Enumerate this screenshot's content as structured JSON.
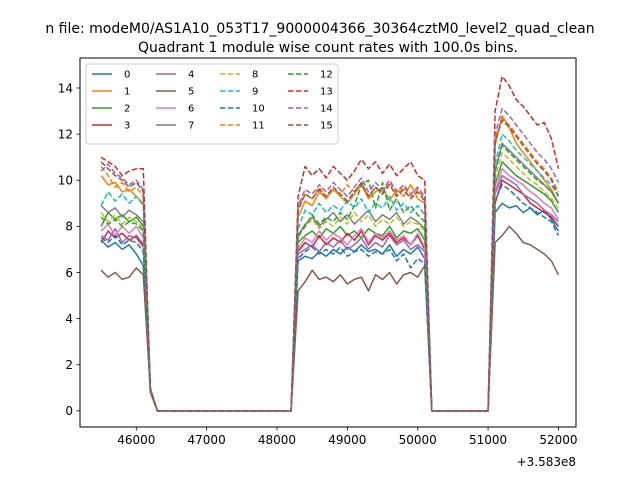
{
  "chart_data": {
    "type": "line",
    "suptitle": "n file: modeM0/AS1A10_053T17_9000004366_30364cztM0_level2_quad_clean",
    "title": "Quadrant 1 module wise count rates with 100.0s bins.",
    "xlabel": "",
    "ylabel": "",
    "x_offset_label": "+3.583e8",
    "xlim": [
      45200,
      52250
    ],
    "ylim": [
      -0.7,
      15.3
    ],
    "x_ticks": [
      46000,
      47000,
      48000,
      49000,
      50000,
      51000,
      52000
    ],
    "x_tick_labels": [
      "46000",
      "47000",
      "48000",
      "49000",
      "50000",
      "51000",
      "52000"
    ],
    "y_ticks": [
      0,
      2,
      4,
      6,
      8,
      10,
      12,
      14
    ],
    "y_tick_labels": [
      "0",
      "2",
      "4",
      "6",
      "8",
      "10",
      "12",
      "14"
    ],
    "grid": false,
    "legend_placement": "top-left",
    "legend_columns": 4,
    "segments": {
      "seg1": [
        45500,
        45600,
        45700,
        45800,
        45900,
        46000,
        46100
      ],
      "seg2": [
        48300,
        48400,
        48500,
        48600,
        48700,
        48800,
        48900,
        49000,
        49100,
        49200,
        49300,
        49400,
        49500,
        49600,
        49700,
        49800,
        49900,
        50000,
        50100
      ],
      "seg3": [
        51100,
        51200,
        51300,
        51400,
        51500,
        51600,
        51700,
        51800,
        51900,
        52000
      ],
      "gap": [
        46200,
        46300,
        48200,
        50200,
        51000
      ]
    },
    "series": [
      {
        "name": "0",
        "color": "#1f77b4",
        "dash": "solid",
        "s1": [
          7.4,
          7.1,
          7.3,
          7.0,
          7.2,
          6.8,
          6.3
        ],
        "s2": [
          6.5,
          6.7,
          6.6,
          6.9,
          6.7,
          7.0,
          6.8,
          7.1,
          6.9,
          7.2,
          6.9,
          7.0,
          6.8,
          7.2,
          6.7,
          7.0,
          6.8,
          7.1,
          6.6
        ],
        "s3": [
          8.6,
          9.0,
          8.8,
          8.9,
          8.6,
          8.8,
          8.5,
          8.7,
          8.3,
          7.8
        ]
      },
      {
        "name": "1",
        "color": "#ff7f0e",
        "dash": "solid",
        "s1": [
          10.2,
          9.8,
          9.9,
          9.5,
          9.6,
          9.3,
          9.0
        ],
        "s2": [
          8.4,
          9.1,
          8.9,
          9.5,
          9.2,
          9.6,
          9.3,
          9.0,
          9.4,
          9.8,
          9.2,
          9.5,
          9.7,
          9.1,
          9.6,
          9.3,
          9.8,
          9.2,
          9.0
        ],
        "s3": [
          11.5,
          12.8,
          12.3,
          11.6,
          11.2,
          10.8,
          10.4,
          10.0,
          9.6,
          9.0
        ]
      },
      {
        "name": "2",
        "color": "#2ca02c",
        "dash": "solid",
        "s1": [
          8.0,
          8.6,
          8.3,
          8.5,
          8.2,
          8.4,
          8.0
        ],
        "s2": [
          7.3,
          7.6,
          7.8,
          7.5,
          7.9,
          7.7,
          8.0,
          7.6,
          7.8,
          7.5,
          7.9,
          7.7,
          7.6,
          8.0,
          7.5,
          7.8,
          7.7,
          7.9,
          7.4
        ],
        "s3": [
          9.8,
          10.8,
          10.5,
          10.2,
          10.0,
          9.8,
          9.6,
          9.4,
          9.1,
          8.6
        ]
      },
      {
        "name": "3",
        "color": "#d62728",
        "dash": "solid",
        "s1": [
          7.3,
          7.8,
          7.5,
          7.7,
          7.4,
          7.6,
          7.2
        ],
        "s2": [
          6.9,
          7.3,
          7.1,
          7.6,
          7.2,
          7.5,
          7.3,
          7.7,
          7.4,
          7.8,
          7.2,
          7.6,
          7.4,
          7.7,
          7.3,
          7.5,
          7.2,
          7.6,
          7.0
        ],
        "s3": [
          9.0,
          10.0,
          9.8,
          9.6,
          9.4,
          9.0,
          8.8,
          8.6,
          8.4,
          8.0
        ]
      },
      {
        "name": "4",
        "color": "#9467bd",
        "dash": "solid",
        "s1": [
          7.6,
          7.4,
          7.9,
          7.3,
          7.6,
          7.5,
          7.1
        ],
        "s2": [
          6.8,
          7.0,
          7.2,
          6.9,
          7.3,
          7.1,
          7.4,
          7.0,
          7.2,
          7.5,
          7.0,
          7.3,
          7.1,
          7.6,
          7.2,
          7.4,
          7.0,
          7.2,
          6.9
        ],
        "s3": [
          9.4,
          10.2,
          10.0,
          9.8,
          9.4,
          9.2,
          9.0,
          8.7,
          8.5,
          8.2
        ]
      },
      {
        "name": "5",
        "color": "#8c564b",
        "dash": "solid",
        "s1": [
          6.1,
          5.8,
          6.0,
          5.7,
          5.8,
          6.2,
          5.9
        ],
        "s2": [
          5.2,
          5.6,
          6.1,
          5.7,
          5.8,
          5.6,
          5.9,
          5.5,
          5.7,
          5.8,
          5.2,
          5.9,
          5.7,
          6.0,
          5.5,
          5.9,
          6.0,
          5.8,
          6.3
        ],
        "s3": [
          7.3,
          7.6,
          8.0,
          7.7,
          7.3,
          7.2,
          7.0,
          6.8,
          6.5,
          5.9
        ]
      },
      {
        "name": "6",
        "color": "#e377c2",
        "dash": "solid",
        "s1": [
          7.8,
          8.1,
          7.6,
          8.0,
          7.7,
          8.0,
          7.5
        ],
        "s2": [
          7.0,
          7.5,
          7.3,
          7.8,
          7.4,
          7.7,
          7.5,
          7.2,
          7.6,
          7.9,
          7.3,
          7.7,
          7.5,
          7.8,
          7.4,
          7.6,
          7.2,
          7.7,
          7.1
        ],
        "s3": [
          9.5,
          10.5,
          10.2,
          10.0,
          9.8,
          9.5,
          9.3,
          9.0,
          8.8,
          8.3
        ]
      },
      {
        "name": "7",
        "color": "#7f7f7f",
        "dash": "solid",
        "s1": [
          8.9,
          8.6,
          8.8,
          8.4,
          8.7,
          8.5,
          8.2
        ],
        "s2": [
          7.6,
          8.1,
          8.4,
          8.0,
          8.3,
          8.6,
          8.2,
          8.5,
          8.1,
          8.4,
          8.7,
          8.2,
          8.5,
          8.3,
          8.6,
          8.1,
          8.4,
          8.2,
          7.9
        ],
        "s3": [
          10.4,
          11.6,
          11.3,
          11.0,
          10.7,
          10.4,
          10.1,
          9.8,
          9.5,
          9.0
        ]
      },
      {
        "name": "8",
        "color": "#bcbd22",
        "dash": "dashed",
        "s1": [
          8.6,
          8.2,
          8.5,
          8.1,
          8.4,
          8.2,
          7.9
        ],
        "s2": [
          7.5,
          8.0,
          8.3,
          7.9,
          8.2,
          8.0,
          8.4,
          8.1,
          8.6,
          8.2,
          8.5,
          8.0,
          8.3,
          8.1,
          8.4,
          8.0,
          8.2,
          8.1,
          7.8
        ],
        "s3": [
          10.1,
          11.2,
          10.9,
          10.6,
          10.3,
          10.0,
          9.8,
          9.5,
          9.2,
          8.8
        ]
      },
      {
        "name": "9",
        "color": "#17becf",
        "dash": "dashed",
        "s1": [
          8.9,
          9.5,
          9.1,
          9.4,
          9.0,
          9.3,
          8.9
        ],
        "s2": [
          7.9,
          8.7,
          8.5,
          9.0,
          8.6,
          8.9,
          8.7,
          9.1,
          8.8,
          9.2,
          8.6,
          9.0,
          8.8,
          9.3,
          8.7,
          9.0,
          8.6,
          8.9,
          8.5
        ],
        "s3": [
          10.7,
          12.0,
          11.7,
          11.3,
          11.0,
          10.7,
          10.4,
          10.1,
          9.8,
          9.3
        ]
      },
      {
        "name": "10",
        "color": "#1f77b4",
        "dash": "dashed",
        "s1": [
          7.5,
          7.3,
          7.6,
          7.2,
          7.4,
          7.3,
          6.9
        ],
        "s2": [
          6.6,
          6.9,
          7.1,
          6.8,
          7.0,
          6.8,
          7.1,
          6.7,
          6.9,
          7.0,
          6.7,
          6.9,
          6.8,
          7.0,
          6.5,
          6.8,
          6.2,
          6.6,
          6.4
        ],
        "s3": [
          9.1,
          9.8,
          9.6,
          9.3,
          9.0,
          8.8,
          8.6,
          8.4,
          8.2,
          7.6
        ]
      },
      {
        "name": "11",
        "color": "#ff7f0e",
        "dash": "dashed",
        "s1": [
          10.6,
          10.2,
          9.7,
          9.9,
          9.5,
          9.7,
          9.3
        ],
        "s2": [
          8.8,
          9.4,
          9.2,
          9.7,
          9.3,
          9.6,
          9.4,
          9.8,
          9.5,
          9.9,
          9.3,
          9.7,
          9.5,
          9.9,
          9.4,
          9.7,
          9.3,
          9.6,
          9.2
        ],
        "s3": [
          11.8,
          12.7,
          12.4,
          12.0,
          11.6,
          11.2,
          10.8,
          10.5,
          10.1,
          9.5
        ]
      },
      {
        "name": "12",
        "color": "#2ca02c",
        "dash": "dashed",
        "s1": [
          8.4,
          8.1,
          8.3,
          8.0,
          8.2,
          8.1,
          7.8
        ],
        "s2": [
          7.6,
          8.0,
          8.5,
          8.1,
          8.4,
          8.2,
          8.6,
          8.3,
          8.9,
          9.8,
          10.0,
          8.8,
          9.9,
          8.7,
          9.2,
          8.6,
          8.9,
          8.5,
          8.2
        ],
        "s3": [
          10.4,
          11.5,
          11.2,
          10.9,
          10.6,
          10.3,
          10.0,
          9.8,
          9.5,
          9.0
        ]
      },
      {
        "name": "13",
        "color": "#d62728",
        "dash": "dashed",
        "s1": [
          11.0,
          10.8,
          10.6,
          10.2,
          10.4,
          10.5,
          10.5
        ],
        "s2": [
          9.3,
          10.6,
          10.2,
          10.5,
          10.1,
          10.6,
          10.3,
          10.0,
          10.4,
          10.9,
          10.5,
          10.8,
          10.3,
          10.7,
          10.2,
          10.5,
          10.8,
          10.2,
          10.0
        ],
        "s3": [
          13.0,
          14.5,
          14.1,
          13.5,
          13.2,
          12.8,
          12.4,
          12.5,
          11.8,
          10.5
        ]
      },
      {
        "name": "14",
        "color": "#9467bd",
        "dash": "dashed",
        "s1": [
          10.4,
          10.7,
          10.3,
          10.1,
          9.8,
          10.0,
          9.6
        ],
        "s2": [
          8.9,
          9.6,
          9.4,
          9.8,
          9.5,
          9.9,
          9.6,
          9.3,
          9.7,
          10.1,
          9.5,
          9.9,
          9.6,
          10.0,
          9.5,
          9.8,
          9.4,
          9.7,
          9.3
        ],
        "s3": [
          12.0,
          13.1,
          12.8,
          12.4,
          12.0,
          11.6,
          11.2,
          10.9,
          10.5,
          9.9
        ]
      },
      {
        "name": "15",
        "color": "#8c564b",
        "dash": "dashed",
        "s1": [
          10.8,
          10.5,
          10.2,
          10.0,
          9.7,
          9.9,
          9.5
        ],
        "s2": [
          8.7,
          9.4,
          9.2,
          9.6,
          9.3,
          9.7,
          9.4,
          9.1,
          9.5,
          9.9,
          9.3,
          9.7,
          9.4,
          9.8,
          9.3,
          9.6,
          9.2,
          9.5,
          9.1
        ],
        "s3": [
          11.7,
          12.6,
          12.3,
          11.9,
          11.5,
          11.1,
          10.7,
          10.4,
          10.0,
          9.3
        ]
      }
    ]
  }
}
